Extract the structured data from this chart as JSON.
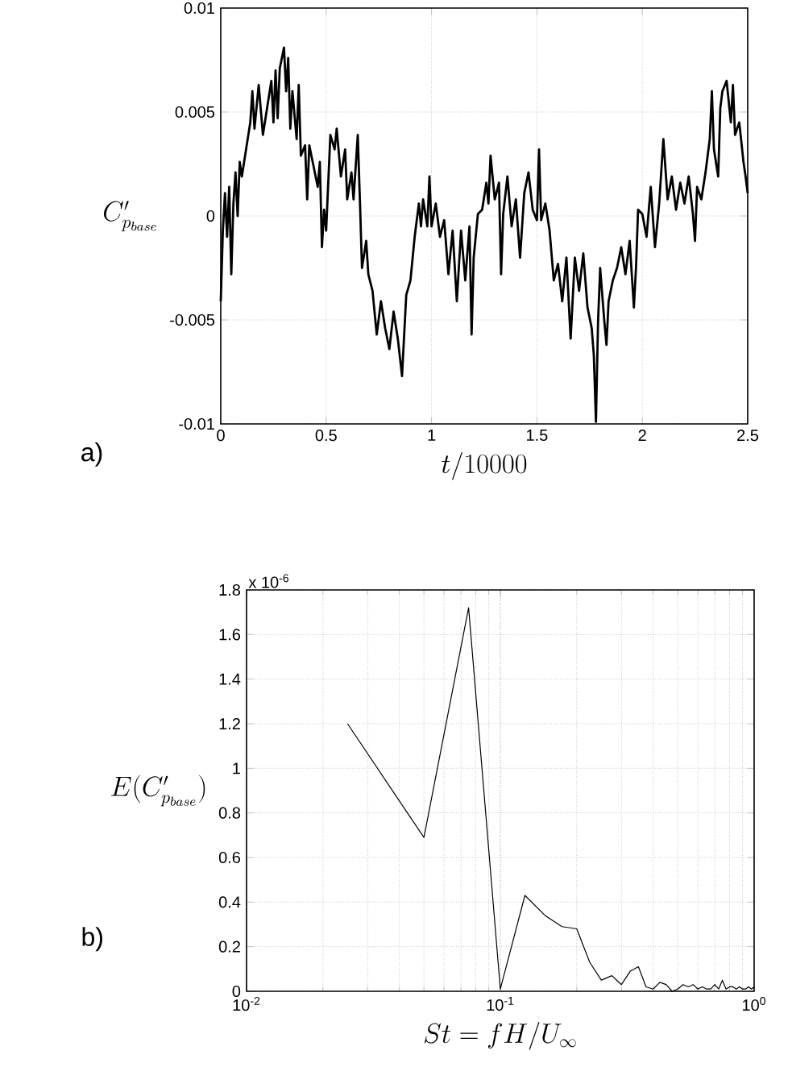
{
  "chart_data": [
    {
      "type": "line",
      "xlabel": "t/10000",
      "ylabel": "C'_{p_{base}}",
      "annotations": [
        "a)"
      ],
      "grid": true,
      "xlim": [
        0,
        2.5
      ],
      "xticks": [
        0,
        0.5,
        1,
        1.5,
        2,
        2.5
      ],
      "ylim": [
        -0.01,
        0.01
      ],
      "yticks": [
        -0.01,
        -0.005,
        0,
        0.005,
        0.01
      ],
      "x": [
        0,
        0.01,
        0.02,
        0.03,
        0.04,
        0.05,
        0.06,
        0.07,
        0.08,
        0.09,
        0.1,
        0.12,
        0.14,
        0.15,
        0.16,
        0.18,
        0.2,
        0.22,
        0.24,
        0.25,
        0.26,
        0.27,
        0.28,
        0.3,
        0.31,
        0.32,
        0.33,
        0.34,
        0.36,
        0.37,
        0.38,
        0.4,
        0.41,
        0.42,
        0.44,
        0.46,
        0.47,
        0.48,
        0.49,
        0.5,
        0.51,
        0.52,
        0.54,
        0.55,
        0.57,
        0.59,
        0.6,
        0.62,
        0.63,
        0.65,
        0.66,
        0.67,
        0.69,
        0.7,
        0.72,
        0.74,
        0.76,
        0.78,
        0.8,
        0.82,
        0.84,
        0.86,
        0.88,
        0.9,
        0.92,
        0.94,
        0.95,
        0.96,
        0.98,
        0.99,
        1.0,
        1.02,
        1.04,
        1.06,
        1.08,
        1.1,
        1.12,
        1.14,
        1.16,
        1.18,
        1.19,
        1.2,
        1.22,
        1.24,
        1.26,
        1.27,
        1.28,
        1.3,
        1.32,
        1.33,
        1.34,
        1.36,
        1.38,
        1.4,
        1.42,
        1.44,
        1.46,
        1.48,
        1.5,
        1.51,
        1.52,
        1.54,
        1.56,
        1.58,
        1.6,
        1.62,
        1.64,
        1.66,
        1.68,
        1.7,
        1.72,
        1.74,
        1.76,
        1.77,
        1.78,
        1.79,
        1.8,
        1.82,
        1.83,
        1.84,
        1.86,
        1.88,
        1.9,
        1.92,
        1.94,
        1.96,
        1.97,
        1.98,
        2.0,
        2.02,
        2.04,
        2.06,
        2.08,
        2.1,
        2.12,
        2.14,
        2.16,
        2.18,
        2.2,
        2.22,
        2.24,
        2.25,
        2.26,
        2.28,
        2.3,
        2.32,
        2.33,
        2.34,
        2.36,
        2.37,
        2.38,
        2.4,
        2.42,
        2.43,
        2.44,
        2.46,
        2.48,
        2.49,
        2.5
      ],
      "series": [
        {
          "color": "#000000",
          "values": [
            -0.0041,
            -0.0007,
            0.0011,
            -0.001,
            0.0014,
            -0.0028,
            0.0006,
            0.0021,
            0,
            0.0026,
            0.0019,
            0.0032,
            0.0045,
            0.006,
            0.0042,
            0.0063,
            0.0039,
            0.0052,
            0.0065,
            0.0045,
            0.007,
            0.0047,
            0.0071,
            0.0081,
            0.006,
            0.0076,
            0.0042,
            0.006,
            0.0037,
            0.0063,
            0.0029,
            0.0034,
            0.0008,
            0.0034,
            0.0024,
            0.0014,
            0.0026,
            -0.0015,
            0.0003,
            -0.0007,
            0.0016,
            0.0039,
            0.0032,
            0.0042,
            0.0019,
            0.0032,
            0.0008,
            0.0021,
            0.0008,
            0.0039,
            0.0008,
            -0.0025,
            -0.0012,
            -0.0028,
            -0.0036,
            -0.0057,
            -0.0041,
            -0.0054,
            -0.0064,
            -0.0046,
            -0.0059,
            -0.0077,
            -0.0038,
            -0.0031,
            -0.001,
            0.0006,
            -0.0005,
            0.0008,
            -0.0005,
            0.0019,
            -0.0005,
            0.0006,
            -0.001,
            -0.0002,
            -0.0028,
            -0.0007,
            -0.0041,
            -0.0007,
            -0.0031,
            -0.0005,
            -0.0057,
            -0.002,
            0.0001,
            0.0003,
            0.0016,
            0.0006,
            0.0029,
            0.0008,
            0.0016,
            -0.0028,
            0.0001,
            0.0019,
            -0.0005,
            0.0008,
            -0.002,
            0.0011,
            0.0021,
            0.0003,
            -0.0002,
            0.0032,
            -0.0002,
            0.0006,
            -0.0007,
            -0.0031,
            -0.0023,
            -0.0041,
            -0.002,
            -0.0059,
            -0.002,
            -0.0036,
            -0.0018,
            -0.0044,
            -0.0054,
            -0.0067,
            -0.0099,
            -0.0051,
            -0.0025,
            -0.0051,
            -0.0062,
            -0.0041,
            -0.0031,
            -0.0025,
            -0.0015,
            -0.0028,
            -0.0012,
            -0.0044,
            -0.0025,
            0.0003,
            0.0001,
            -0.001,
            0.0014,
            -0.0015,
            0.0006,
            0.0037,
            0.0008,
            0.0019,
            0.0003,
            0.0016,
            0.0006,
            0.0019,
            0.0001,
            -0.0012,
            0.0014,
            0.0008,
            0.0021,
            0.0037,
            0.006,
            0.0032,
            0.0019,
            0.0052,
            0.006,
            0.0065,
            0.0045,
            0.0063,
            0.0039,
            0.0045,
            0.0026,
            0.0019,
            0.0011
          ]
        }
      ]
    },
    {
      "type": "line",
      "xlabel": "St = fH/U_\\infty",
      "ylabel": "E(C'_{p_{base}})",
      "annotations": [
        "x 10$^{-6}$",
        "b)"
      ],
      "grid": true,
      "log": "x",
      "xlim": [
        0.01,
        1
      ],
      "xticks": [
        {
          "value": 0.01,
          "label": "10$^{-2}$"
        },
        {
          "value": 0.1,
          "label": "10$^{-1}$"
        },
        {
          "value": 1,
          "label": "10$^{0}$"
        }
      ],
      "ylim": [
        0,
        1.8
      ],
      "yticks": [
        0,
        0.2,
        0.4,
        0.6,
        0.8,
        1,
        1.2,
        1.4,
        1.6,
        1.8
      ],
      "x": [
        0.025,
        0.05,
        0.075,
        0.1,
        0.125,
        0.15,
        0.175,
        0.2,
        0.225,
        0.25,
        0.275,
        0.3,
        0.325,
        0.35,
        0.375,
        0.4,
        0.425,
        0.45,
        0.475,
        0.5,
        0.525,
        0.55,
        0.575,
        0.6,
        0.625,
        0.65,
        0.675,
        0.7,
        0.725,
        0.75,
        0.775,
        0.8,
        0.825,
        0.85,
        0.875,
        0.9,
        0.925,
        0.95,
        0.975,
        1.0
      ],
      "series": [
        {
          "color": "#000000",
          "values": [
            1.2,
            0.69,
            1.72,
            0.01,
            0.43,
            0.34,
            0.29,
            0.28,
            0.13,
            0.05,
            0.07,
            0.03,
            0.09,
            0.11,
            0.02,
            0.01,
            0.04,
            0.03,
            0.0,
            0.01,
            0.03,
            0.02,
            0.03,
            0.01,
            0.02,
            0.01,
            0.01,
            0.03,
            0.01,
            0.05,
            0.01,
            0.02,
            0.02,
            0.01,
            0.02,
            0.01,
            0.01,
            0.02,
            0.01,
            0.02
          ]
        }
      ]
    }
  ]
}
